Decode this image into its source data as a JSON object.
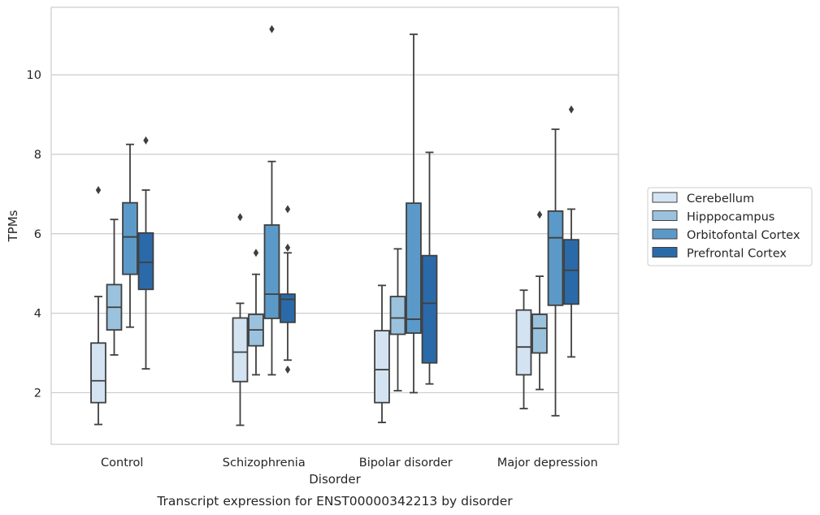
{
  "chart_data": {
    "type": "box",
    "caption": "Transcript expression for ENST00000342213 by disorder",
    "xlabel": "Disorder",
    "ylabel": "TPMs",
    "ylim": [
      0.7,
      11.7
    ],
    "yticks": [
      2,
      4,
      6,
      8,
      10
    ],
    "grid": true,
    "legend_position": "right",
    "categories": [
      "Control",
      "Schizophrenia",
      "Bipolar disorder",
      "Major depression"
    ],
    "series": [
      {
        "name": "Cerebellum",
        "color": "#d4e3f2",
        "boxes": [
          {
            "whisker_low": 1.2,
            "q1": 1.75,
            "median": 2.3,
            "q3": 3.25,
            "whisker_high": 4.42,
            "outliers": [
              7.1
            ]
          },
          {
            "whisker_low": 1.18,
            "q1": 2.28,
            "median": 3.02,
            "q3": 3.88,
            "whisker_high": 4.25,
            "outliers": [
              6.42
            ]
          },
          {
            "whisker_low": 1.25,
            "q1": 1.75,
            "median": 2.58,
            "q3": 3.56,
            "whisker_high": 4.7,
            "outliers": []
          },
          {
            "whisker_low": 1.6,
            "q1": 2.45,
            "median": 3.15,
            "q3": 4.08,
            "whisker_high": 4.58,
            "outliers": []
          }
        ]
      },
      {
        "name": "Hipppocampus",
        "color": "#9bc2dd",
        "boxes": [
          {
            "whisker_low": 2.95,
            "q1": 3.58,
            "median": 4.15,
            "q3": 4.72,
            "whisker_high": 6.36,
            "outliers": []
          },
          {
            "whisker_low": 2.45,
            "q1": 3.18,
            "median": 3.58,
            "q3": 3.97,
            "whisker_high": 4.98,
            "outliers": [
              5.52
            ]
          },
          {
            "whisker_low": 2.05,
            "q1": 3.47,
            "median": 3.88,
            "q3": 4.42,
            "whisker_high": 5.62,
            "outliers": []
          },
          {
            "whisker_low": 2.08,
            "q1": 3.0,
            "median": 3.62,
            "q3": 3.97,
            "whisker_high": 4.93,
            "outliers": [
              6.48
            ]
          }
        ]
      },
      {
        "name": "Orbitofontal Cortex",
        "color": "#5b9ac8",
        "boxes": [
          {
            "whisker_low": 3.65,
            "q1": 4.98,
            "median": 5.92,
            "q3": 6.78,
            "whisker_high": 8.25,
            "outliers": []
          },
          {
            "whisker_low": 2.45,
            "q1": 3.87,
            "median": 4.48,
            "q3": 6.22,
            "whisker_high": 7.82,
            "outliers": [
              11.15
            ]
          },
          {
            "whisker_low": 2.0,
            "q1": 3.5,
            "median": 3.85,
            "q3": 6.77,
            "whisker_high": 11.02,
            "outliers": []
          },
          {
            "whisker_low": 1.42,
            "q1": 4.2,
            "median": 5.9,
            "q3": 6.57,
            "whisker_high": 8.63,
            "outliers": []
          }
        ]
      },
      {
        "name": "Prefrontal Cortex",
        "color": "#2b6aa8",
        "boxes": [
          {
            "whisker_low": 2.6,
            "q1": 4.6,
            "median": 5.28,
            "q3": 6.02,
            "whisker_high": 7.1,
            "outliers": [
              8.35
            ]
          },
          {
            "whisker_low": 2.82,
            "q1": 3.77,
            "median": 4.35,
            "q3": 4.48,
            "whisker_high": 5.52,
            "outliers": [
              6.62,
              5.65,
              2.58
            ]
          },
          {
            "whisker_low": 2.22,
            "q1": 2.75,
            "median": 4.25,
            "q3": 5.45,
            "whisker_high": 8.05,
            "outliers": []
          },
          {
            "whisker_low": 2.9,
            "q1": 4.23,
            "median": 5.08,
            "q3": 5.85,
            "whisker_high": 6.62,
            "outliers": [
              9.13
            ]
          }
        ]
      }
    ]
  }
}
